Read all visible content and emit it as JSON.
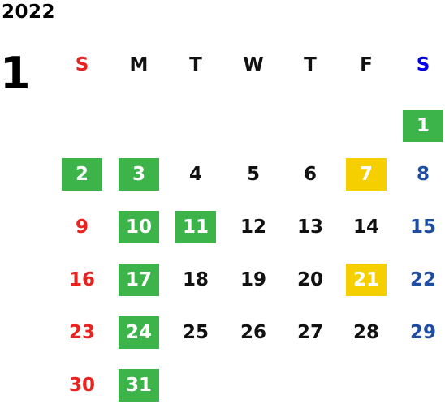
{
  "calendar": {
    "year": "2022",
    "month": "1",
    "weekdays": [
      {
        "label": "S",
        "type": "sun"
      },
      {
        "label": "M",
        "type": "week"
      },
      {
        "label": "T",
        "type": "week"
      },
      {
        "label": "W",
        "type": "week"
      },
      {
        "label": "T",
        "type": "week"
      },
      {
        "label": "F",
        "type": "week"
      },
      {
        "label": "S",
        "type": "sat"
      }
    ],
    "weeks": [
      [
        null,
        null,
        null,
        null,
        null,
        null,
        {
          "label": "1",
          "mark": "green"
        }
      ],
      [
        {
          "label": "2",
          "mark": "green"
        },
        {
          "label": "3",
          "mark": "green"
        },
        {
          "label": "4",
          "mark": "none"
        },
        {
          "label": "5",
          "mark": "none"
        },
        {
          "label": "6",
          "mark": "none"
        },
        {
          "label": "7",
          "mark": "yellow"
        },
        {
          "label": "8",
          "mark": "none"
        }
      ],
      [
        {
          "label": "9",
          "mark": "none"
        },
        {
          "label": "10",
          "mark": "green"
        },
        {
          "label": "11",
          "mark": "green"
        },
        {
          "label": "12",
          "mark": "none"
        },
        {
          "label": "13",
          "mark": "none"
        },
        {
          "label": "14",
          "mark": "none"
        },
        {
          "label": "15",
          "mark": "none"
        }
      ],
      [
        {
          "label": "16",
          "mark": "none"
        },
        {
          "label": "17",
          "mark": "green"
        },
        {
          "label": "18",
          "mark": "none"
        },
        {
          "label": "19",
          "mark": "none"
        },
        {
          "label": "20",
          "mark": "none"
        },
        {
          "label": "21",
          "mark": "yellow"
        },
        {
          "label": "22",
          "mark": "none"
        }
      ],
      [
        {
          "label": "23",
          "mark": "none"
        },
        {
          "label": "24",
          "mark": "green"
        },
        {
          "label": "25",
          "mark": "none"
        },
        {
          "label": "26",
          "mark": "none"
        },
        {
          "label": "27",
          "mark": "none"
        },
        {
          "label": "28",
          "mark": "none"
        },
        {
          "label": "29",
          "mark": "none"
        }
      ],
      [
        {
          "label": "30",
          "mark": "none"
        },
        {
          "label": "31",
          "mark": "green"
        },
        null,
        null,
        null,
        null,
        null
      ]
    ]
  },
  "colors": {
    "sunday": "#e8231f",
    "saturday_header": "#0000ee",
    "saturday": "#1f4da1",
    "weekday": "#111111",
    "green_fill": "#3cb44a",
    "yellow_fill": "#f5cf00",
    "marked_text": "#ffffff"
  }
}
